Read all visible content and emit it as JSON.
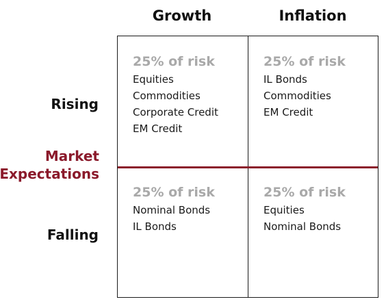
{
  "columns": [
    "Growth",
    "Inflation"
  ],
  "rows": [
    "Rising",
    "Falling"
  ],
  "axis_label": {
    "line1": "Market",
    "line2": "Expectations"
  },
  "colors": {
    "accent": "#8b1a2b",
    "risk_text": "#a9a9a9",
    "border": "#1a1a1a"
  },
  "cells": [
    {
      "risk": "25% of risk",
      "items": [
        "Equities",
        "Commodities",
        "Corporate Credit",
        "EM Credit"
      ]
    },
    {
      "risk": "25% of risk",
      "items": [
        "IL Bonds",
        "Commodities",
        "EM Credit"
      ]
    },
    {
      "risk": "25% of risk",
      "items": [
        "Nominal Bonds",
        "IL Bonds"
      ]
    },
    {
      "risk": "25% of risk",
      "items": [
        "Equities",
        "Nominal Bonds"
      ]
    }
  ]
}
